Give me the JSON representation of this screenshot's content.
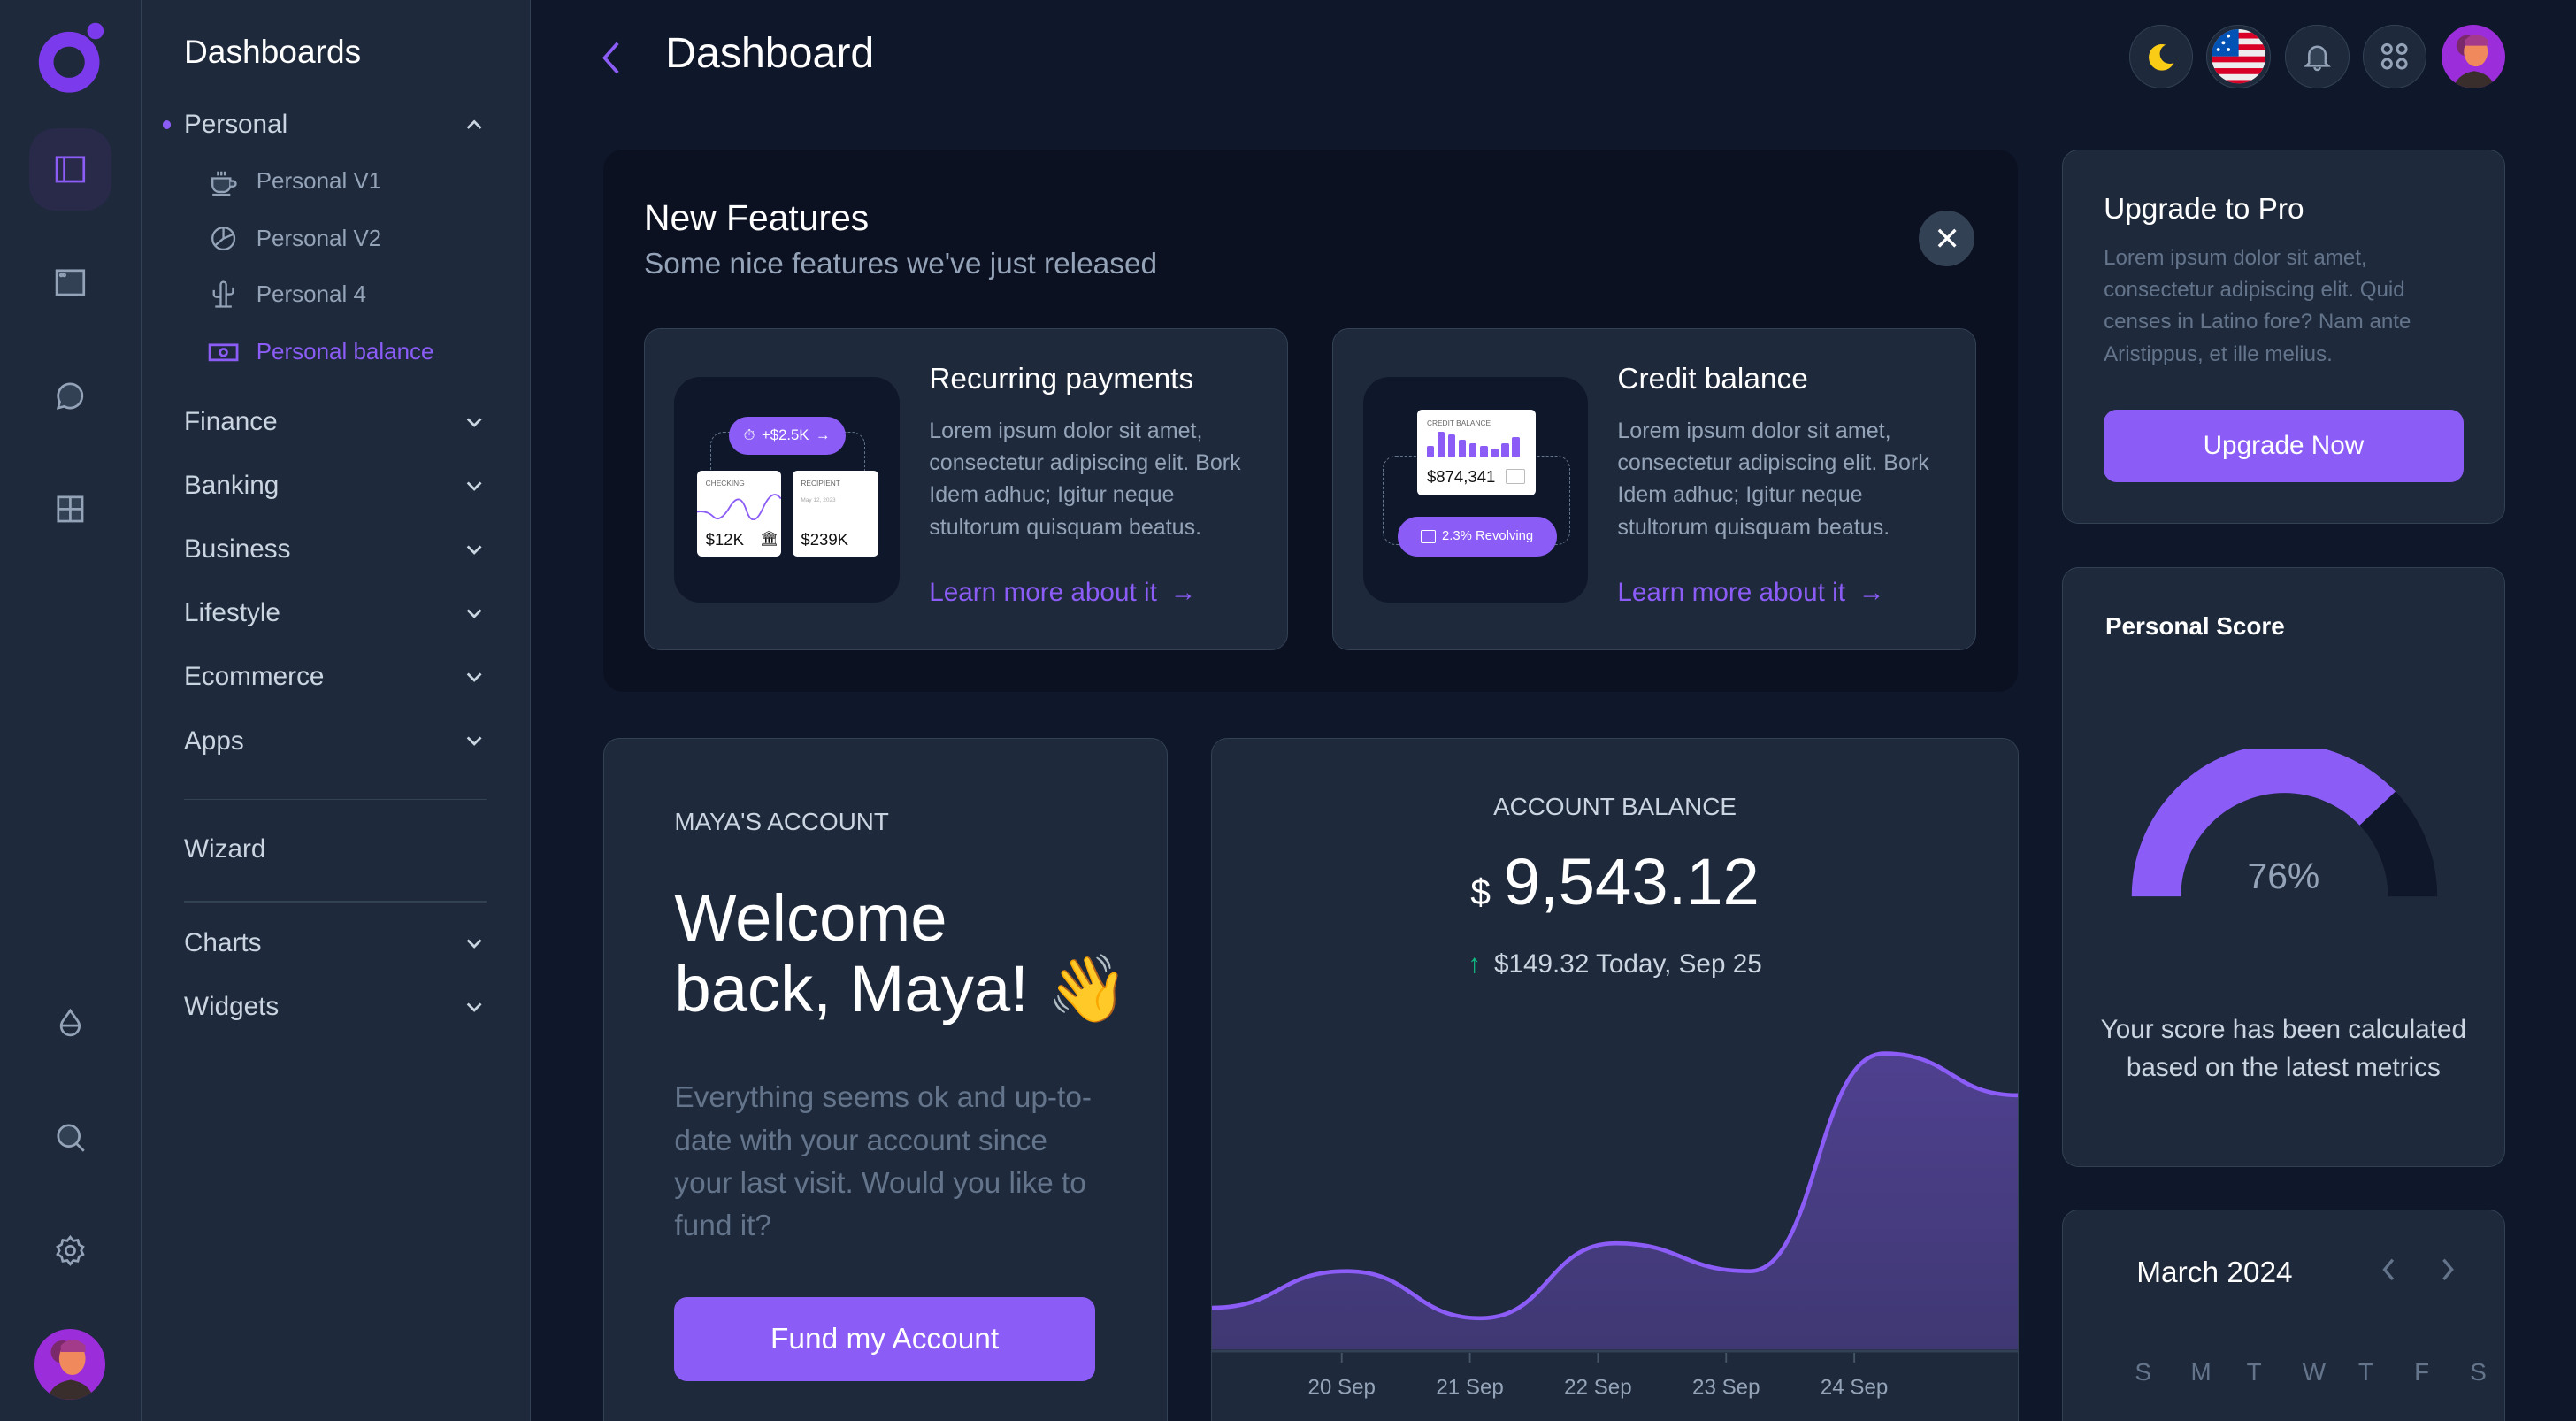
{
  "colors": {
    "accent": "#8b5cf6",
    "bg": "#0f172a",
    "panel": "#1e293b",
    "positive": "#10b981"
  },
  "rail": {
    "icons": [
      "logo",
      "layout-sidebar-icon",
      "window-icon",
      "chat-icon",
      "grid-icon",
      "droplet-icon",
      "search-icon",
      "gear-icon",
      "avatar"
    ],
    "active": "layout-sidebar-icon"
  },
  "sidebar": {
    "title": "Dashboards",
    "personal": {
      "label": "Personal",
      "expanded": true,
      "items": [
        {
          "label": "Personal V1",
          "icon": "coffee-icon"
        },
        {
          "label": "Personal V2",
          "icon": "pie-chart-icon"
        },
        {
          "label": "Personal 4",
          "icon": "cactus-icon"
        },
        {
          "label": "Personal balance",
          "icon": "money-icon",
          "active": true
        }
      ]
    },
    "groups": [
      "Finance",
      "Banking",
      "Business",
      "Lifestyle",
      "Ecommerce",
      "Apps"
    ],
    "wizard": "Wizard",
    "groups2": [
      "Charts",
      "Widgets"
    ]
  },
  "header": {
    "title": "Dashboard",
    "icons": [
      "moon-icon",
      "us-flag-icon",
      "bell-icon",
      "apps-icon",
      "avatar"
    ]
  },
  "features": {
    "title": "New Features",
    "subtitle": "Some nice features we've just released",
    "cards": [
      {
        "title": "Recurring payments",
        "body": "Lorem ipsum dolor sit amet, consectetur adipiscing elit. Bork Idem adhuc; Igitur neque stultorum quisquam beatus.",
        "link": "Learn more about it",
        "illu": {
          "pill": "+$2.5K",
          "card1_label": "CHECKING",
          "card1_value": "$12K",
          "card2_label": "RECIPIENT",
          "card2_date": "May 12, 2023",
          "card2_value": "$239K"
        }
      },
      {
        "title": "Credit balance",
        "body": "Lorem ipsum dolor sit amet, consectetur adipiscing elit. Bork Idem adhuc; Igitur neque stultorum quisquam beatus.",
        "link": "Learn more about it",
        "illu": {
          "label": "CREDIT BALANCE",
          "value": "$874,341",
          "pill": "2.3% Revolving",
          "bars": [
            4,
            9,
            8,
            6,
            5,
            4,
            3,
            5,
            7
          ]
        }
      }
    ]
  },
  "account": {
    "label": "MAYA'S ACCOUNT",
    "welcome_line1": "Welcome",
    "welcome_line2": "back, Maya! 👋",
    "body": "Everything seems ok and up-to-date with your account since your last visit. Would you like to fund it?",
    "button": "Fund my Account"
  },
  "balance": {
    "label": "ACCOUNT BALANCE",
    "currency": "$",
    "amount": "9,543.12",
    "change": "$149.32 Today, Sep 25",
    "trend": "up"
  },
  "chart_data": {
    "type": "area",
    "x_tick_labels": [
      "20 Sep",
      "21 Sep",
      "22 Sep",
      "23 Sep",
      "24 Sep"
    ],
    "values": [
      24,
      45,
      18,
      61,
      45,
      170,
      146
    ],
    "ylim": [
      0,
      200
    ],
    "grid": false,
    "color": "#8b5cf6"
  },
  "upgrade": {
    "title": "Upgrade to Pro",
    "body": "Lorem ipsum dolor sit amet, consectetur adipiscing elit. Quid censes in Latino fore? Nam ante Aristippus, et ille melius.",
    "button": "Upgrade Now"
  },
  "score": {
    "title": "Personal Score",
    "value": 76,
    "value_label": "76%",
    "text": "Your score has been calculated based on the latest metrics"
  },
  "calendar": {
    "title": "March 2024",
    "weekdays": [
      "S",
      "M",
      "T",
      "W",
      "T",
      "F",
      "S"
    ]
  }
}
